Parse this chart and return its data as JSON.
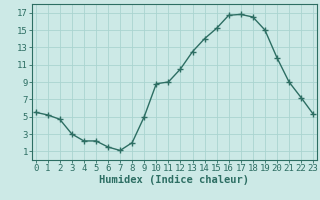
{
  "x": [
    0,
    1,
    2,
    3,
    4,
    5,
    6,
    7,
    8,
    9,
    10,
    11,
    12,
    13,
    14,
    15,
    16,
    17,
    18,
    19,
    20,
    21,
    22,
    23
  ],
  "y": [
    5.5,
    5.2,
    4.7,
    3.0,
    2.2,
    2.2,
    1.5,
    1.1,
    2.0,
    5.0,
    8.8,
    9.0,
    10.5,
    12.5,
    14.0,
    15.2,
    16.7,
    16.8,
    16.5,
    15.0,
    11.8,
    9.0,
    7.2,
    5.3
  ],
  "line_color": "#2d6e63",
  "marker": "+",
  "marker_size": 4,
  "bg_color": "#cce9e6",
  "grid_color": "#aad4d0",
  "xlabel": "Humidex (Indice chaleur)",
  "yticks": [
    1,
    3,
    5,
    7,
    9,
    11,
    13,
    15,
    17
  ],
  "xticks": [
    0,
    1,
    2,
    3,
    4,
    5,
    6,
    7,
    8,
    9,
    10,
    11,
    12,
    13,
    14,
    15,
    16,
    17,
    18,
    19,
    20,
    21,
    22,
    23
  ],
  "xlim": [
    -0.3,
    23.3
  ],
  "ylim": [
    0.0,
    18.0
  ],
  "xlabel_fontsize": 7.5,
  "tick_fontsize": 6.5,
  "linewidth": 1.0
}
